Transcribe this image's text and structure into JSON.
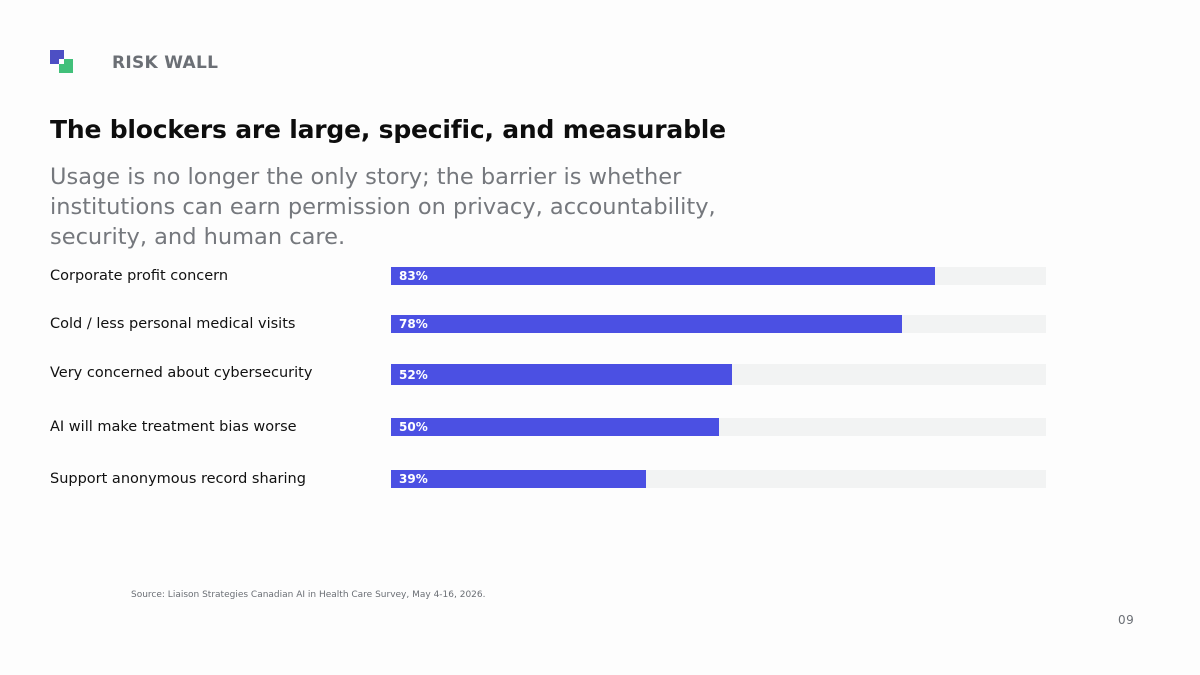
{
  "header": {
    "section_label": "RISK WALL",
    "logo_icon": "stacked-squares-logo",
    "logo_colors": [
      "#4d4fc4",
      "#41c07a"
    ]
  },
  "slide": {
    "title": "The blockers are large, specific, and measurable",
    "subtitle": "Usage is no longer the only story; the barrier is whether institutions can earn permission on privacy, accountability, security, and human care.",
    "source": "Source: Liaison Strategies Canadian AI in Health Care Survey, May 4-16, 2026.",
    "page_number": "09"
  },
  "chart_data": {
    "type": "bar",
    "orientation": "horizontal",
    "categories": [
      "Corporate profit concern",
      "Cold / less personal medical visits",
      "Very concerned about cybersecurity",
      "AI will make treatment bias worse",
      "Support anonymous record sharing"
    ],
    "values": [
      83,
      78,
      52,
      50,
      39
    ],
    "value_labels": [
      "83%",
      "78%",
      "52%",
      "50%",
      "39%"
    ],
    "xlim": [
      0,
      100
    ],
    "bar_color": "#4b50e3",
    "track_color": "#f2f3f3",
    "grid": false,
    "legend": "none"
  }
}
